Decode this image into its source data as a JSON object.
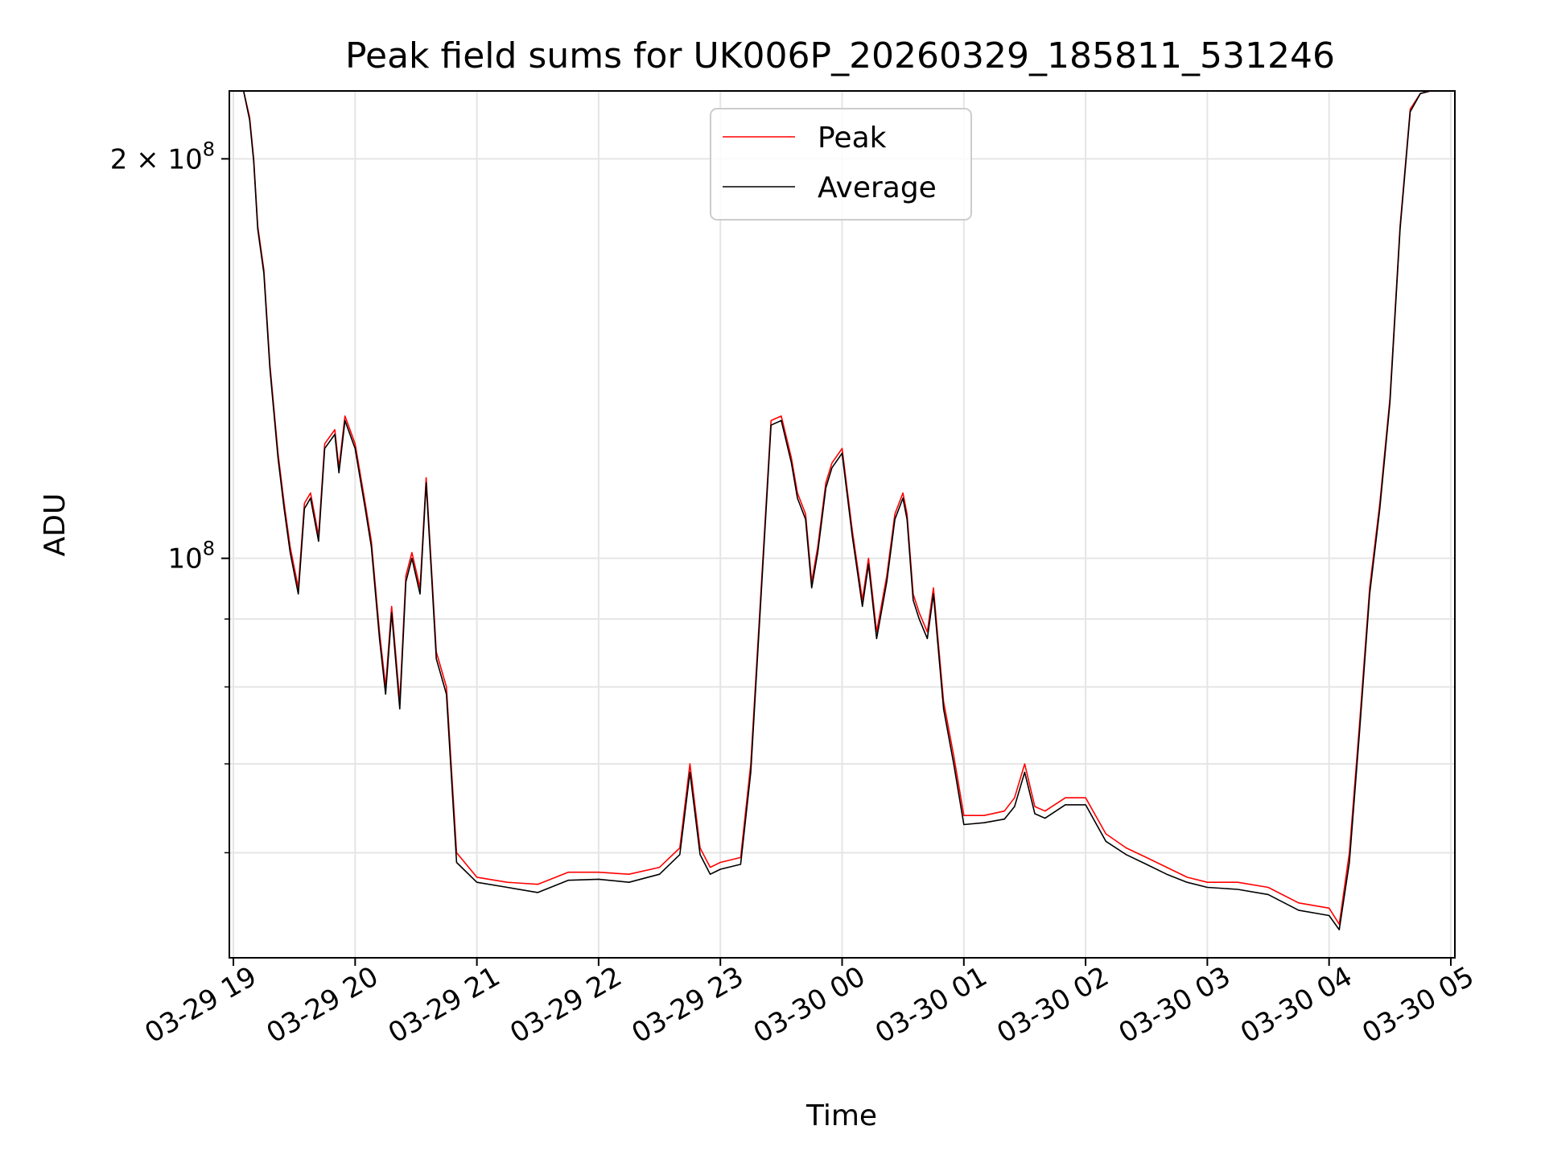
{
  "chart_data": {
    "type": "line",
    "title": "Peak field sums for UK006P_20260329_185811_531246",
    "xlabel": "Time",
    "ylabel": "ADU",
    "yscale": "log",
    "xlim": [
      "2026-03-29T18:58",
      "2026-03-30T05:02"
    ],
    "ylim": [
      50000000,
      225000000
    ],
    "x_ticks": [
      {
        "at": "2026-03-29T19:00",
        "label": "03-29 19"
      },
      {
        "at": "2026-03-29T20:00",
        "label": "03-29 20"
      },
      {
        "at": "2026-03-29T21:00",
        "label": "03-29 21"
      },
      {
        "at": "2026-03-29T22:00",
        "label": "03-29 22"
      },
      {
        "at": "2026-03-29T23:00",
        "label": "03-29 23"
      },
      {
        "at": "2026-03-30T00:00",
        "label": "03-30 00"
      },
      {
        "at": "2026-03-30T01:00",
        "label": "03-30 01"
      },
      {
        "at": "2026-03-30T02:00",
        "label": "03-30 02"
      },
      {
        "at": "2026-03-30T03:00",
        "label": "03-30 03"
      },
      {
        "at": "2026-03-30T04:00",
        "label": "03-30 04"
      },
      {
        "at": "2026-03-30T05:00",
        "label": "03-30 05"
      }
    ],
    "y_ticks": [
      {
        "value": 200000000,
        "base": "2 × 10",
        "exp": "8"
      },
      {
        "value": 100000000,
        "base": "10",
        "exp": "8"
      }
    ],
    "y_minor_ticks": [
      60000000,
      70000000,
      80000000,
      90000000
    ],
    "grid": true,
    "legend": "upper-center",
    "series": [
      {
        "name": "Peak",
        "color": "#ff0000",
        "x": [
          "2026-03-29T18:58",
          "2026-03-29T19:05",
          "2026-03-29T19:08",
          "2026-03-29T19:10",
          "2026-03-29T19:12",
          "2026-03-29T19:15",
          "2026-03-29T19:18",
          "2026-03-29T19:22",
          "2026-03-29T19:25",
          "2026-03-29T19:28",
          "2026-03-29T19:32",
          "2026-03-29T19:35",
          "2026-03-29T19:38",
          "2026-03-29T19:42",
          "2026-03-29T19:45",
          "2026-03-29T19:50",
          "2026-03-29T19:52",
          "2026-03-29T19:55",
          "2026-03-29T20:00",
          "2026-03-29T20:05",
          "2026-03-29T20:08",
          "2026-03-29T20:12",
          "2026-03-29T20:15",
          "2026-03-29T20:18",
          "2026-03-29T20:22",
          "2026-03-29T20:25",
          "2026-03-29T20:28",
          "2026-03-29T20:32",
          "2026-03-29T20:35",
          "2026-03-29T20:38",
          "2026-03-29T20:40",
          "2026-03-29T20:45",
          "2026-03-29T20:50",
          "2026-03-29T21:00",
          "2026-03-29T21:15",
          "2026-03-29T21:30",
          "2026-03-29T21:45",
          "2026-03-29T22:00",
          "2026-03-29T22:15",
          "2026-03-29T22:30",
          "2026-03-29T22:40",
          "2026-03-29T22:45",
          "2026-03-29T22:50",
          "2026-03-29T22:55",
          "2026-03-29T23:00",
          "2026-03-29T23:10",
          "2026-03-29T23:15",
          "2026-03-29T23:25",
          "2026-03-29T23:30",
          "2026-03-29T23:35",
          "2026-03-29T23:38",
          "2026-03-29T23:42",
          "2026-03-29T23:45",
          "2026-03-29T23:48",
          "2026-03-29T23:52",
          "2026-03-29T23:55",
          "2026-03-30T00:00",
          "2026-03-30T00:05",
          "2026-03-30T00:10",
          "2026-03-30T00:13",
          "2026-03-30T00:17",
          "2026-03-30T00:22",
          "2026-03-30T00:26",
          "2026-03-30T00:30",
          "2026-03-30T00:32",
          "2026-03-30T00:35",
          "2026-03-30T00:38",
          "2026-03-30T00:42",
          "2026-03-30T00:45",
          "2026-03-30T00:50",
          "2026-03-30T00:55",
          "2026-03-30T01:00",
          "2026-03-30T01:10",
          "2026-03-30T01:20",
          "2026-03-30T01:25",
          "2026-03-30T01:30",
          "2026-03-30T01:35",
          "2026-03-30T01:40",
          "2026-03-30T01:50",
          "2026-03-30T02:00",
          "2026-03-30T02:10",
          "2026-03-30T02:20",
          "2026-03-30T02:30",
          "2026-03-30T02:40",
          "2026-03-30T02:50",
          "2026-03-30T03:00",
          "2026-03-30T03:15",
          "2026-03-30T03:30",
          "2026-03-30T03:45",
          "2026-03-30T04:00",
          "2026-03-30T04:05",
          "2026-03-30T04:10",
          "2026-03-30T04:15",
          "2026-03-30T04:20",
          "2026-03-30T04:25",
          "2026-03-30T04:30",
          "2026-03-30T04:35",
          "2026-03-30T04:40",
          "2026-03-30T04:45",
          "2026-03-30T04:50",
          "2026-03-30T05:00",
          "2026-03-30T05:02"
        ],
        "values": [
          225000000,
          225000000,
          215000000,
          200000000,
          178000000,
          165000000,
          140000000,
          120000000,
          110000000,
          102000000,
          95000000,
          110000000,
          112000000,
          104000000,
          122000000,
          125000000,
          117000000,
          128000000,
          122000000,
          110000000,
          103000000,
          88000000,
          80000000,
          92000000,
          78000000,
          97000000,
          101000000,
          95000000,
          115000000,
          96000000,
          85000000,
          80000000,
          60000000,
          57500000,
          57000000,
          56800000,
          58000000,
          58000000,
          57800000,
          58500000,
          60500000,
          70000000,
          60500000,
          58500000,
          59000000,
          59500000,
          70000000,
          127000000,
          128000000,
          119000000,
          112000000,
          108000000,
          96000000,
          102000000,
          114000000,
          118000000,
          121000000,
          105000000,
          93000000,
          100000000,
          88000000,
          97000000,
          108000000,
          112000000,
          108000000,
          94000000,
          91000000,
          88000000,
          95000000,
          78000000,
          71000000,
          64000000,
          64000000,
          64500000,
          66000000,
          70000000,
          65000000,
          64500000,
          66000000,
          66000000,
          62000000,
          60500000,
          59500000,
          58500000,
          57500000,
          57000000,
          57000000,
          56500000,
          55000000,
          54500000,
          53000000,
          60000000,
          75000000,
          95000000,
          110000000,
          132000000,
          178000000,
          218000000,
          224000000,
          225000000,
          225000000,
          225000000
        ]
      },
      {
        "name": "Average",
        "color": "#000000",
        "x": [
          "2026-03-29T18:58",
          "2026-03-29T19:05",
          "2026-03-29T19:08",
          "2026-03-29T19:10",
          "2026-03-29T19:12",
          "2026-03-29T19:15",
          "2026-03-29T19:18",
          "2026-03-29T19:22",
          "2026-03-29T19:25",
          "2026-03-29T19:28",
          "2026-03-29T19:32",
          "2026-03-29T19:35",
          "2026-03-29T19:38",
          "2026-03-29T19:42",
          "2026-03-29T19:45",
          "2026-03-29T19:50",
          "2026-03-29T19:52",
          "2026-03-29T19:55",
          "2026-03-29T20:00",
          "2026-03-29T20:05",
          "2026-03-29T20:08",
          "2026-03-29T20:12",
          "2026-03-29T20:15",
          "2026-03-29T20:18",
          "2026-03-29T20:22",
          "2026-03-29T20:25",
          "2026-03-29T20:28",
          "2026-03-29T20:32",
          "2026-03-29T20:35",
          "2026-03-29T20:38",
          "2026-03-29T20:40",
          "2026-03-29T20:45",
          "2026-03-29T20:50",
          "2026-03-29T21:00",
          "2026-03-29T21:15",
          "2026-03-29T21:30",
          "2026-03-29T21:45",
          "2026-03-29T22:00",
          "2026-03-29T22:15",
          "2026-03-29T22:30",
          "2026-03-29T22:40",
          "2026-03-29T22:45",
          "2026-03-29T22:50",
          "2026-03-29T22:55",
          "2026-03-29T23:00",
          "2026-03-29T23:10",
          "2026-03-29T23:15",
          "2026-03-29T23:25",
          "2026-03-29T23:30",
          "2026-03-29T23:35",
          "2026-03-29T23:38",
          "2026-03-29T23:42",
          "2026-03-29T23:45",
          "2026-03-29T23:48",
          "2026-03-29T23:52",
          "2026-03-29T23:55",
          "2026-03-30T00:00",
          "2026-03-30T00:05",
          "2026-03-30T00:10",
          "2026-03-30T00:13",
          "2026-03-30T00:17",
          "2026-03-30T00:22",
          "2026-03-30T00:26",
          "2026-03-30T00:30",
          "2026-03-30T00:32",
          "2026-03-30T00:35",
          "2026-03-30T00:38",
          "2026-03-30T00:42",
          "2026-03-30T00:45",
          "2026-03-30T00:50",
          "2026-03-30T00:55",
          "2026-03-30T01:00",
          "2026-03-30T01:10",
          "2026-03-30T01:20",
          "2026-03-30T01:25",
          "2026-03-30T01:30",
          "2026-03-30T01:35",
          "2026-03-30T01:40",
          "2026-03-30T01:50",
          "2026-03-30T02:00",
          "2026-03-30T02:10",
          "2026-03-30T02:20",
          "2026-03-30T02:30",
          "2026-03-30T02:40",
          "2026-03-30T02:50",
          "2026-03-30T03:00",
          "2026-03-30T03:15",
          "2026-03-30T03:30",
          "2026-03-30T03:45",
          "2026-03-30T04:00",
          "2026-03-30T04:05",
          "2026-03-30T04:10",
          "2026-03-30T04:15",
          "2026-03-30T04:20",
          "2026-03-30T04:25",
          "2026-03-30T04:30",
          "2026-03-30T04:35",
          "2026-03-30T04:40",
          "2026-03-30T04:45",
          "2026-03-30T04:50",
          "2026-03-30T05:00",
          "2026-03-30T05:02"
        ],
        "values": [
          225000000,
          225000000,
          214000000,
          199000000,
          177000000,
          164000000,
          139000000,
          119000000,
          109000000,
          101000000,
          94000000,
          109000000,
          111000000,
          103000000,
          121000000,
          124000000,
          116000000,
          127000000,
          121000000,
          109000000,
          102000000,
          87000000,
          79000000,
          91000000,
          77000000,
          96000000,
          100000000,
          94000000,
          114000000,
          95000000,
          84000000,
          79000000,
          59000000,
          57000000,
          56500000,
          56000000,
          57200000,
          57300000,
          57000000,
          57800000,
          59800000,
          69000000,
          59800000,
          57800000,
          58300000,
          58800000,
          69000000,
          126000000,
          127000000,
          118000000,
          111000000,
          107000000,
          95000000,
          101000000,
          113000000,
          117000000,
          120000000,
          104000000,
          92000000,
          99000000,
          87000000,
          96000000,
          107000000,
          111000000,
          107000000,
          93000000,
          90000000,
          87000000,
          94000000,
          77000000,
          70000000,
          63000000,
          63200000,
          63600000,
          65000000,
          69000000,
          64200000,
          63700000,
          65200000,
          65200000,
          61200000,
          59800000,
          58800000,
          57800000,
          57000000,
          56500000,
          56300000,
          55800000,
          54300000,
          53800000,
          52500000,
          59000000,
          74000000,
          94000000,
          109000000,
          131000000,
          177000000,
          217000000,
          224000000,
          225000000,
          225000000,
          225000000
        ]
      }
    ]
  }
}
